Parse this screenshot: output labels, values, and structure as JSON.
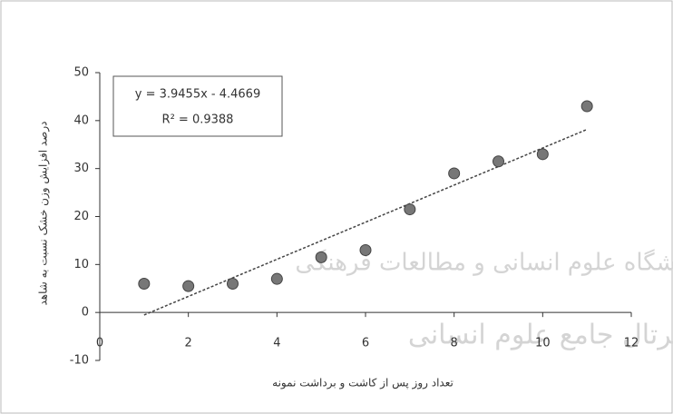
{
  "chart_data": {
    "type": "scatter",
    "x_label": "تعداد روز پس از کاشت و برداشت نمونه",
    "y_label": "درصد افزایش وزن خشک نسبت به شاهد",
    "equation": "y = 3.9455x - 4.4669",
    "r_squared": "R² = 0.9388",
    "x": [
      1,
      2,
      3,
      4,
      5,
      6,
      7,
      8,
      9,
      10,
      11
    ],
    "values": [
      6,
      5.5,
      6,
      7,
      11.5,
      13,
      21.5,
      29,
      31.5,
      33,
      43
    ],
    "color": "#777777",
    "trendline": true,
    "xlim": [
      0,
      12
    ],
    "xticks": [
      0,
      2,
      4,
      6,
      8,
      10,
      12
    ],
    "ylim": [
      -10,
      50
    ],
    "yticks": [
      -10,
      0,
      10,
      20,
      30,
      40,
      50
    ]
  },
  "watermark": {
    "line1": "پژوهشگاه علوم انسانی و مطالعات فرهنگی",
    "line2": "پرتال جامع علوم انسانی"
  }
}
